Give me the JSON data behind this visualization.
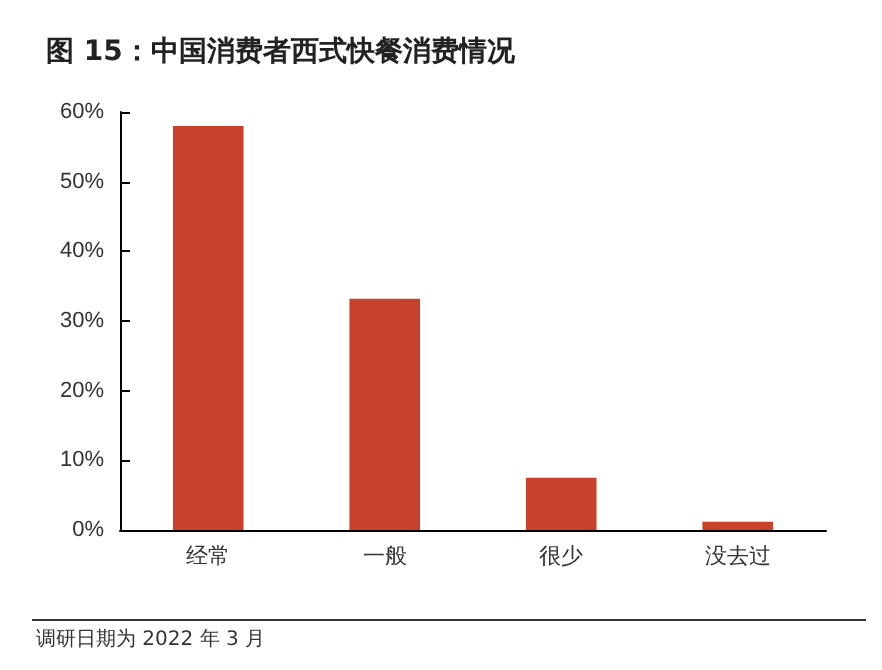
{
  "chart_data": {
    "type": "bar",
    "title": "图 15：中国消费者西式快餐消费情况",
    "categories": [
      "经常",
      "一般",
      "很少",
      "没去过"
    ],
    "values": [
      58,
      33.2,
      7.5,
      1.2
    ],
    "color": "#c8412a",
    "ylim": [
      0,
      60
    ],
    "yticks": [
      {
        "value": 0,
        "label": "0%"
      },
      {
        "value": 10,
        "label": "10%"
      },
      {
        "value": 20,
        "label": "20%"
      },
      {
        "value": 30,
        "label": "30%"
      },
      {
        "value": 40,
        "label": "40%"
      },
      {
        "value": 50,
        "label": "50%"
      },
      {
        "value": 60,
        "label": "60%"
      }
    ],
    "grid": false,
    "annotations": [
      "调研日期为 2022 年 3 月"
    ]
  }
}
